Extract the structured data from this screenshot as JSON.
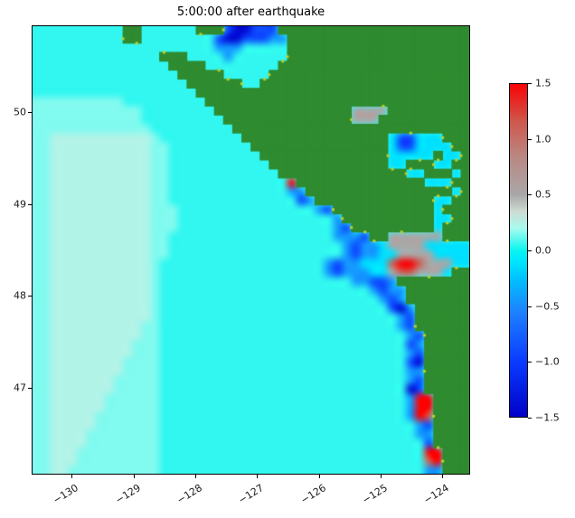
{
  "chart_data": {
    "type": "heatmap",
    "title": "5:00:00 after earthquake",
    "xlabel": "",
    "ylabel": "",
    "x_range": [
      -130.65,
      -123.55
    ],
    "y_range": [
      46.05,
      50.95
    ],
    "x_ticks": [
      {
        "label": "−130",
        "value": -130
      },
      {
        "label": "−129",
        "value": -129
      },
      {
        "label": "−128",
        "value": -128
      },
      {
        "label": "−127",
        "value": -127
      },
      {
        "label": "−126",
        "value": -126
      },
      {
        "label": "−125",
        "value": -125
      },
      {
        "label": "−124",
        "value": -124
      }
    ],
    "y_ticks": [
      {
        "label": "50",
        "value": 50
      },
      {
        "label": "49",
        "value": 49
      },
      {
        "label": "48",
        "value": 48
      },
      {
        "label": "47",
        "value": 47
      }
    ],
    "colorbar": {
      "min": -1.5,
      "max": 1.5,
      "tick_labels": [
        "1.5",
        "1.0",
        "0.5",
        "0.0",
        "−0.5",
        "−1.0",
        "−1.5"
      ],
      "tick_values": [
        1.5,
        1.0,
        0.5,
        0.0,
        -0.5,
        -1.0,
        -1.5
      ]
    },
    "colormap": [
      [
        -1.5,
        "#0000c8"
      ],
      [
        -1.0,
        "#0a3cff"
      ],
      [
        -0.55,
        "#1e82ff"
      ],
      [
        -0.25,
        "#00c3ff"
      ],
      [
        -0.08,
        "#00eaff"
      ],
      [
        0.0,
        "#0af5f0"
      ],
      [
        0.2,
        "#a8fbef"
      ],
      [
        0.35,
        "#cfdcd4"
      ],
      [
        0.5,
        "#a8a8a8"
      ],
      [
        0.85,
        "#bb8782"
      ],
      [
        1.15,
        "#cd5a4e"
      ],
      [
        1.5,
        "#fb0205"
      ]
    ],
    "land_color": "#2f8b2f",
    "land_edge_color": "#b9d130",
    "value_key": {
      "#": "land",
      ".": 0.05,
      "o": 0.15,
      "O": 0.24,
      "c": -0.12,
      "b": -0.45,
      "B": -0.9,
      "D": -1.4,
      "g": 0.5,
      "G": 0.8,
      "r": 1.1,
      "R": 1.5
    },
    "grid_cols": 48,
    "grid_rows": 50,
    "grid": [
      "..........##......###BDDBBB#####################",
      "..........##........BDDBBBbb####################",
      "....................bbb.....####################",
      "..............###....b......####################",
      "...............####........#####################",
      "................#####.....######################",
      ".................######..#######################",
      "..................##############################",
      "oooooooooo.........#############################",
      "oooooooooooo........###############gggg#########",
      "oooooooooooo.........##############ggg##########",
      "ooooooooooooo.........##########################",
      "ooOOOOOOOOOOOo.........################cBBccc###",
      "ooOOOOOOOOOOOoo.........###############cBBcccc##",
      "ooOOOOOOOOOOOoo..........##############ccccc#cc#",
      "ooOOOOOOOOOOOoo...........#############cc###cc##",
      "ooOOOOOOOOOOOoo............##############cc###c#",
      "ooOOOOOOOOOOOoo.............R##############ccc##",
      "ooOOOOOOOOOOOoo.............bb################c#",
      "ooOOOOOOOOOOOoo..............Bb#############cc##",
      "ooOOOOOOOOOOOooo...............bB###########c###",
      "ooOOOOOOOOOOOooo.................b##########cc##",
      "ooOOOOOOOOOOOooo.................bB#########c###",
      "ooOOOOOOOOOOOoo..................bbbB##gggggg###",
      "ooOOOOOOOOOOOoo...................bBbbcggggccccc",
      "ooOOOOOOOOOOOoo...................bBbbccggggcccc",
      "ooOOOOOOOOOOOo..................bBbbcccrRRrgggcc",
      "ooOOOOOOOOOOOo..................bBbbbccgrrgggc##",
      "ooOOOOOOOOOOOo.....................bbBBb########",
      "ooOOOOOOOOOOOo.......................bBbb#######",
      "ooOOOOOOOOOOOo........................bBb#######",
      "ooOOOOOOOOOOOo.........................BDb######",
      "ooOOOOOOOOOOOo..........................bB######",
      "ooOOOOOOOOOOoo..........................bB######",
      "ooOOOOOOOOOOoo...........................bB#####",
      "ooOOOOOOOOOooo...........................Bb#####",
      "ooOOOOOOOOOooo...........................bB#####",
      "ooOOOOOOOOoooo...........................BD#####",
      "ooOOOOOOOOoooo...........................bb#####",
      "ooOOOOOOOooooo...........................bB#####",
      "ooOOOOOOOooooo...........................DB#####",
      "ooOOOOOOoooooo...........................bRR####",
      "ooOOOOOOoooooo...........................bRR####",
      "ooOOOOOooooooo...........................bRr####",
      "ooOOOOOooooooo............................bB####",
      "ooOOOOoooooooo............................bb####",
      "ooOOOOoooooooo.............................B####",
      "ooOOOooooooooo.............................RR###",
      "ooOOOooooooooo.............................rR###",
      "ooOOoooooooooo.............................bb###"
    ]
  }
}
